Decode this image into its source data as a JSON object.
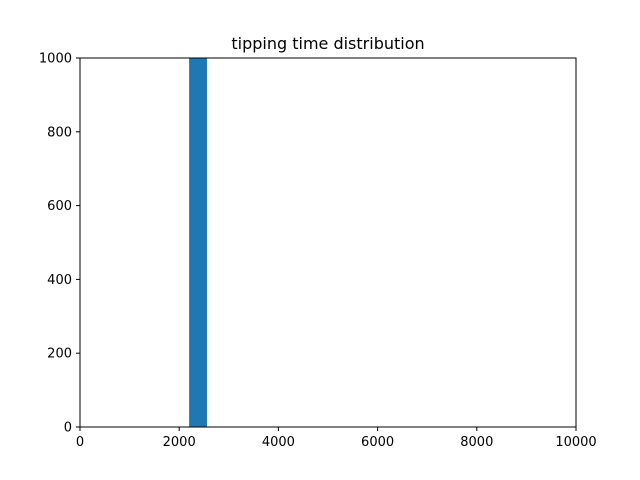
{
  "chart_data": {
    "type": "bar",
    "title": "tipping time distribution",
    "xlabel": "",
    "ylabel": "",
    "xlim": [
      0,
      10000
    ],
    "ylim": [
      0,
      1000
    ],
    "xticks": [
      0,
      2000,
      4000,
      6000,
      8000,
      10000
    ],
    "yticks": [
      0,
      200,
      400,
      600,
      800,
      1000
    ],
    "bins": [
      {
        "x0": 2200,
        "x1": 2560,
        "count": 1000
      }
    ],
    "bar_color": "#1f77b4",
    "grid": false
  }
}
